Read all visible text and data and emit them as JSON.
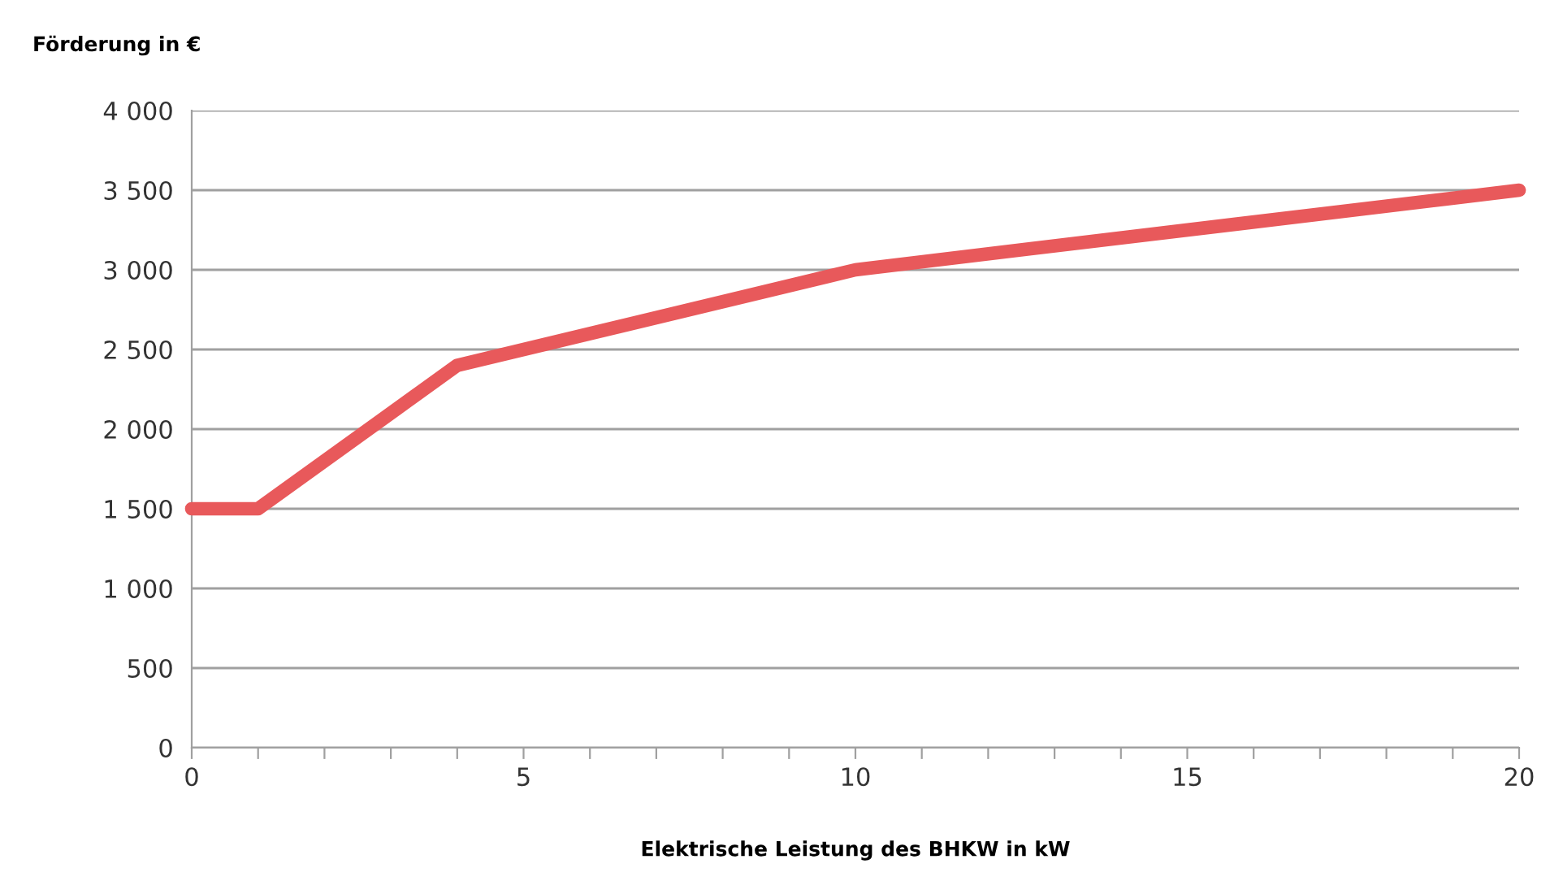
{
  "chart_data": {
    "type": "line",
    "ylabel": "Förderung in €",
    "xlabel": "Elektrische Leistung des BHKW in kW",
    "x": [
      0,
      1,
      4,
      10,
      20
    ],
    "series": [
      {
        "color": "#e8595b",
        "values": [
          1500,
          1500,
          2400,
          3000,
          3500
        ]
      }
    ],
    "xlim": [
      0,
      20
    ],
    "xticks": [
      0,
      {
        "value": 1,
        "label": null
      },
      {
        "value": 2,
        "label": null
      },
      {
        "value": 3,
        "label": null
      },
      {
        "value": 4,
        "label": null
      },
      5,
      {
        "value": 6,
        "label": null
      },
      {
        "value": 7,
        "label": null
      },
      {
        "value": 8,
        "label": null
      },
      {
        "value": 9,
        "label": null
      },
      10,
      {
        "value": 11,
        "label": null
      },
      {
        "value": 12,
        "label": null
      },
      {
        "value": 13,
        "label": null
      },
      {
        "value": 14,
        "label": null
      },
      15,
      {
        "value": 16,
        "label": null
      },
      {
        "value": 17,
        "label": null
      },
      {
        "value": 18,
        "label": null
      },
      {
        "value": 19,
        "label": null
      },
      20
    ],
    "ylim": [
      0,
      4000
    ],
    "yticks": [
      0,
      500,
      {
        "value": 1000,
        "label": "1 000"
      },
      {
        "value": 1500,
        "label": "1 500"
      },
      {
        "value": 2000,
        "label": "2 000"
      },
      {
        "value": 2500,
        "label": "2 500"
      },
      {
        "value": 3000,
        "label": "3 000"
      },
      {
        "value": 3500,
        "label": "3 500"
      },
      {
        "value": 4000,
        "label": "4 000"
      }
    ],
    "grid": "y",
    "marker": "none",
    "line_style": "solid",
    "legend": false
  }
}
